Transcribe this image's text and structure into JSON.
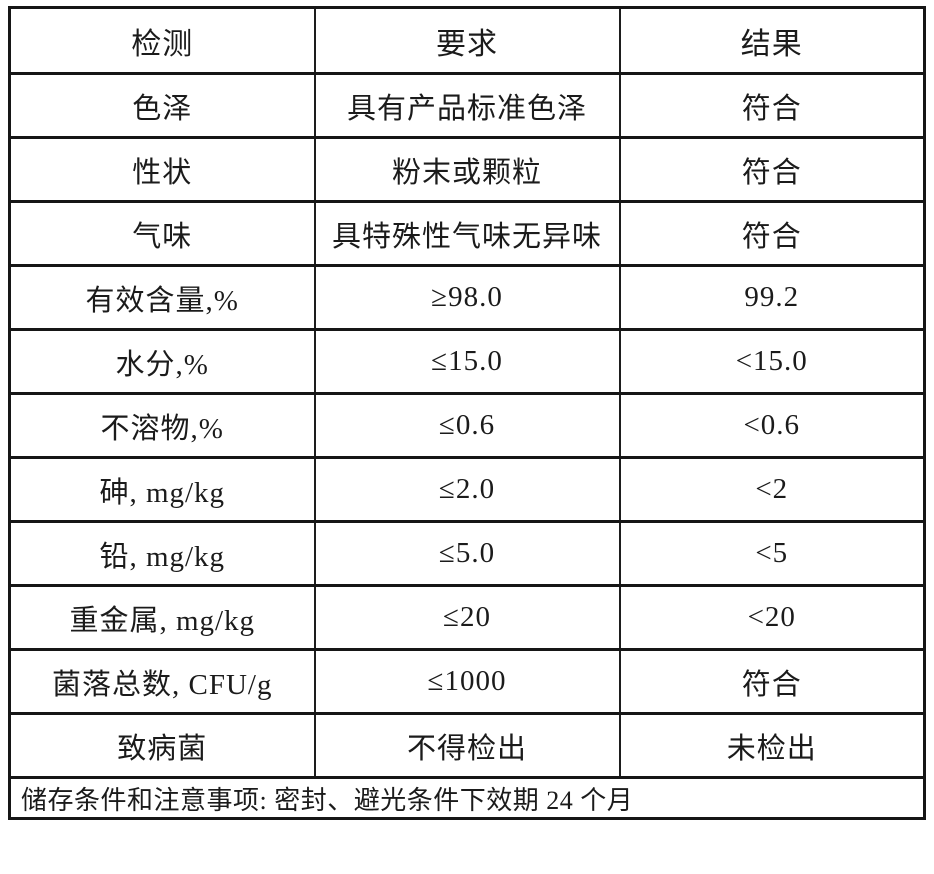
{
  "table": {
    "headers": [
      "检测",
      "要求",
      "结果"
    ],
    "rows": [
      [
        "色泽",
        "具有产品标准色泽",
        "符合"
      ],
      [
        "性状",
        "粉末或颗粒",
        "符合"
      ],
      [
        "气味",
        "具特殊性气味无异味",
        "符合"
      ],
      [
        "有效含量,%",
        "≥98.0",
        "99.2"
      ],
      [
        "水分,%",
        "≤15.0",
        "<15.0"
      ],
      [
        "不溶物,%",
        "≤0.6",
        "<0.6"
      ],
      [
        "砷, mg/kg",
        "≤2.0",
        "<2"
      ],
      [
        "铅, mg/kg",
        "≤5.0",
        "<5"
      ],
      [
        "重金属, mg/kg",
        "≤20",
        "<20"
      ],
      [
        "菌落总数, CFU/g",
        "≤1000",
        "符合"
      ],
      [
        "致病菌",
        "不得检出",
        "未检出"
      ]
    ],
    "footer_note": "储存条件和注意事项: 密封、避光条件下效期 24 个月"
  }
}
